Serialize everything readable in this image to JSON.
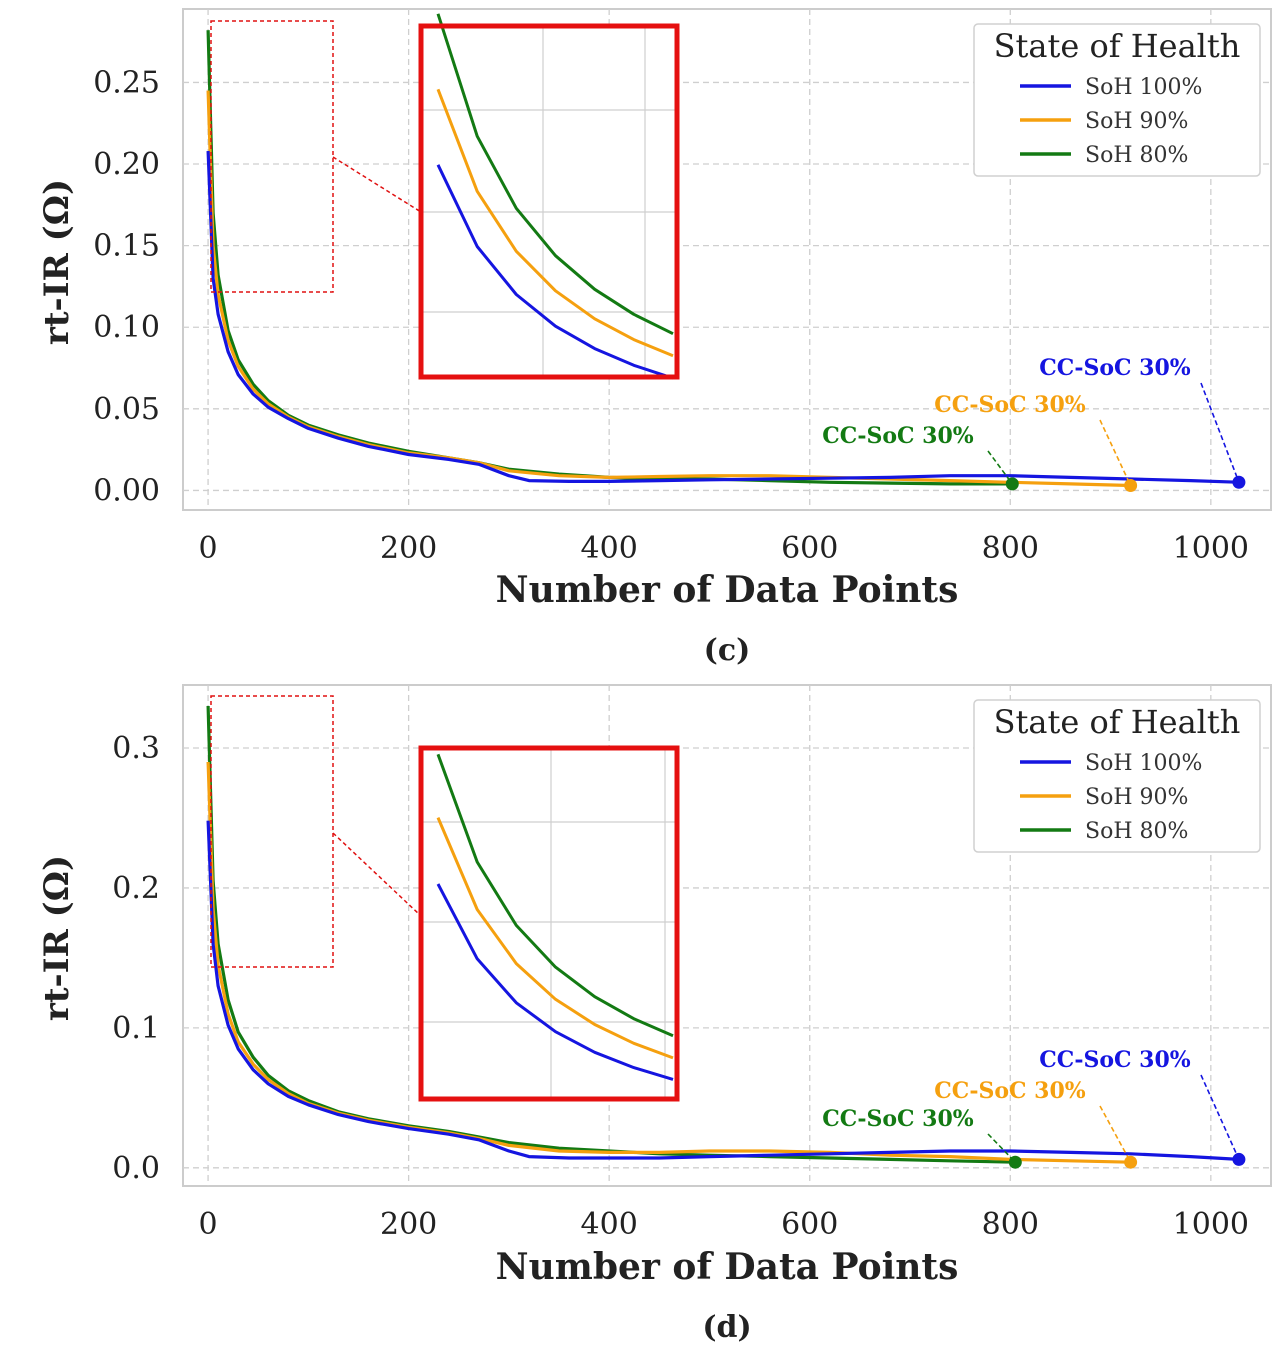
{
  "chart_data": [
    {
      "type": "line",
      "caption": "(c)",
      "xlabel": "Number of Data Points",
      "ylabel": "rt-IR (Ω)",
      "xlim": [
        -25,
        1060
      ],
      "ylim": [
        -0.012,
        0.295
      ],
      "xticks": [
        0,
        200,
        400,
        600,
        800,
        1000
      ],
      "xtick_labels": [
        "0",
        "200",
        "400",
        "600",
        "800",
        "1000"
      ],
      "yticks": [
        0.0,
        0.05,
        0.1,
        0.15,
        0.2,
        0.25
      ],
      "ytick_labels": [
        "0.00",
        "0.05",
        "0.10",
        "0.15",
        "0.20",
        "0.25"
      ],
      "grid": true,
      "legend": {
        "title": "State of Health",
        "placement": "top-right"
      },
      "series": [
        {
          "name": "SoH 100%",
          "color": "#1515e0",
          "x": [
            0,
            5,
            10,
            20,
            30,
            45,
            60,
            80,
            100,
            130,
            160,
            200,
            240,
            270,
            300,
            320,
            360,
            400,
            450,
            500,
            560,
            620,
            680,
            740,
            800,
            860,
            920,
            980,
            1030
          ],
          "y": [
            0.208,
            0.13,
            0.108,
            0.085,
            0.071,
            0.059,
            0.051,
            0.044,
            0.038,
            0.032,
            0.027,
            0.022,
            0.019,
            0.016,
            0.009,
            0.006,
            0.0055,
            0.0055,
            0.006,
            0.0065,
            0.007,
            0.0075,
            0.008,
            0.009,
            0.009,
            0.008,
            0.007,
            0.006,
            0.005
          ]
        },
        {
          "name": "SoH 90%",
          "color": "#f5a00f",
          "x": [
            0,
            5,
            10,
            20,
            30,
            45,
            60,
            80,
            100,
            130,
            160,
            200,
            240,
            270,
            300,
            350,
            400,
            450,
            500,
            560,
            620,
            680,
            740,
            800,
            860,
            920
          ],
          "y": [
            0.245,
            0.15,
            0.12,
            0.092,
            0.076,
            0.062,
            0.053,
            0.045,
            0.039,
            0.033,
            0.028,
            0.023,
            0.02,
            0.017,
            0.012,
            0.009,
            0.008,
            0.0085,
            0.009,
            0.009,
            0.008,
            0.007,
            0.006,
            0.005,
            0.004,
            0.003
          ]
        },
        {
          "name": "SoH 80%",
          "color": "#137a13",
          "x": [
            0,
            5,
            10,
            20,
            30,
            45,
            60,
            80,
            100,
            130,
            160,
            200,
            240,
            270,
            300,
            350,
            400,
            450,
            500,
            560,
            620,
            680,
            740,
            800
          ],
          "y": [
            0.282,
            0.17,
            0.132,
            0.098,
            0.08,
            0.065,
            0.055,
            0.046,
            0.04,
            0.034,
            0.029,
            0.024,
            0.02,
            0.017,
            0.013,
            0.01,
            0.008,
            0.007,
            0.007,
            0.006,
            0.005,
            0.0045,
            0.004,
            0.004
          ]
        }
      ],
      "annotations": [
        {
          "text": "CC-SoC 30%",
          "color": "#1515e0",
          "point": [
            1028,
            0.005
          ]
        },
        {
          "text": "CC-SoC 30%",
          "color": "#f5a00f",
          "point": [
            920,
            0.003
          ]
        },
        {
          "text": "CC-SoC 30%",
          "color": "#137a13",
          "point": [
            802,
            0.004
          ]
        }
      ],
      "zoom_inset": {
        "x": [
          0,
          12
        ],
        "series_colors": [
          "#137a13",
          "#f5a00f",
          "#1515e0"
        ]
      }
    },
    {
      "type": "line",
      "caption": "(d)",
      "xlabel": "Number of Data Points",
      "ylabel": "rt-IR (Ω)",
      "xlim": [
        -25,
        1060
      ],
      "ylim": [
        -0.013,
        0.345
      ],
      "xticks": [
        0,
        200,
        400,
        600,
        800,
        1000
      ],
      "xtick_labels": [
        "0",
        "200",
        "400",
        "600",
        "800",
        "1000"
      ],
      "yticks": [
        0.0,
        0.1,
        0.2,
        0.3
      ],
      "ytick_labels": [
        "0.0",
        "0.1",
        "0.2",
        "0.3"
      ],
      "grid": true,
      "legend": {
        "title": "State of Health",
        "placement": "top-right"
      },
      "series": [
        {
          "name": "SoH 100%",
          "color": "#1515e0",
          "x": [
            0,
            5,
            10,
            20,
            30,
            45,
            60,
            80,
            100,
            130,
            160,
            200,
            240,
            270,
            300,
            320,
            360,
            400,
            450,
            500,
            560,
            620,
            680,
            740,
            800,
            860,
            920,
            980,
            1028
          ],
          "y": [
            0.248,
            0.16,
            0.13,
            0.102,
            0.085,
            0.07,
            0.06,
            0.051,
            0.045,
            0.038,
            0.033,
            0.028,
            0.024,
            0.02,
            0.012,
            0.008,
            0.007,
            0.007,
            0.007,
            0.008,
            0.009,
            0.01,
            0.011,
            0.012,
            0.012,
            0.011,
            0.01,
            0.008,
            0.006
          ]
        },
        {
          "name": "SoH 90%",
          "color": "#f5a00f",
          "x": [
            0,
            5,
            10,
            20,
            30,
            45,
            60,
            80,
            100,
            130,
            160,
            200,
            240,
            270,
            300,
            350,
            400,
            450,
            500,
            560,
            620,
            680,
            740,
            800,
            860,
            920
          ],
          "y": [
            0.29,
            0.185,
            0.145,
            0.11,
            0.09,
            0.074,
            0.063,
            0.053,
            0.046,
            0.039,
            0.034,
            0.029,
            0.025,
            0.021,
            0.016,
            0.012,
            0.011,
            0.011,
            0.012,
            0.012,
            0.011,
            0.009,
            0.008,
            0.006,
            0.005,
            0.004
          ]
        },
        {
          "name": "SoH 80%",
          "color": "#137a13",
          "x": [
            0,
            5,
            10,
            20,
            30,
            45,
            60,
            80,
            100,
            130,
            160,
            200,
            240,
            270,
            300,
            350,
            400,
            450,
            500,
            560,
            620,
            680,
            740,
            805
          ],
          "y": [
            0.33,
            0.205,
            0.16,
            0.12,
            0.097,
            0.079,
            0.066,
            0.055,
            0.048,
            0.04,
            0.035,
            0.03,
            0.026,
            0.022,
            0.018,
            0.014,
            0.012,
            0.01,
            0.009,
            0.008,
            0.007,
            0.006,
            0.005,
            0.004
          ]
        }
      ],
      "annotations": [
        {
          "text": "CC-SoC 30%",
          "color": "#1515e0",
          "point": [
            1028,
            0.006
          ]
        },
        {
          "text": "CC-SoC 30%",
          "color": "#f5a00f",
          "point": [
            920,
            0.004
          ]
        },
        {
          "text": "CC-SoC 30%",
          "color": "#137a13",
          "point": [
            805,
            0.004
          ]
        }
      ],
      "zoom_inset": {
        "x": [
          0,
          12
        ],
        "series_colors": [
          "#137a13",
          "#f5a00f",
          "#1515e0"
        ]
      }
    }
  ]
}
